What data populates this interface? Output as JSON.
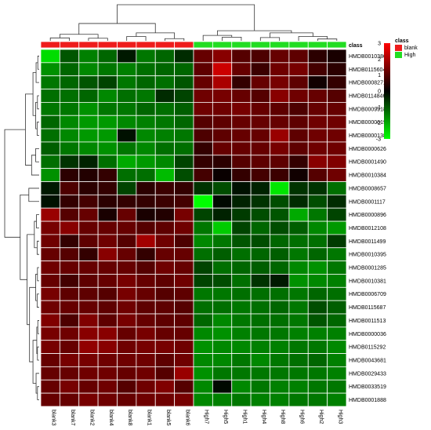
{
  "chart_data": {
    "type": "heatmap",
    "columns": [
      "blank3",
      "blank7",
      "blank2",
      "blank4",
      "blank8",
      "blank1",
      "blank5",
      "blank6",
      "High7",
      "High5",
      "High1",
      "High4",
      "High8",
      "High6",
      "High2",
      "High3"
    ],
    "rows": [
      "HMDB0010386",
      "HMDB0115604",
      "HMDB0008271",
      "HMDB0114846",
      "HMDB0009918",
      "HMDB0000619",
      "HMDB0000138",
      "HMDB0000626",
      "HMDB0001490",
      "HMDB0010384",
      "HMDB0008657",
      "HMDB0001117",
      "HMDB0000896",
      "HMDB0012108",
      "HMDB0011499",
      "HMDB0010395",
      "HMDB0001285",
      "HMDB0010381",
      "HMDB0006709",
      "HMDB0115687",
      "HMDB0011513",
      "HMDB0000036",
      "HMDB0115292",
      "HMDB0043681",
      "HMDB0029433",
      "HMDB0033519",
      "HMDB0001888"
    ],
    "column_class": [
      "blank",
      "blank",
      "blank",
      "blank",
      "blank",
      "blank",
      "blank",
      "blank",
      "High",
      "High",
      "High",
      "High",
      "High",
      "High",
      "High",
      "High"
    ],
    "values": [
      [
        -2.6,
        -1.0,
        -1.5,
        -1.2,
        -0.3,
        -1.4,
        -1.2,
        -0.5,
        1.2,
        1.6,
        1.0,
        0.9,
        1.2,
        1.1,
        0.5,
        0.3
      ],
      [
        -1.7,
        -1.2,
        -1.6,
        -1.4,
        -1.5,
        -1.3,
        -1.2,
        -1.2,
        1.1,
        2.4,
        1.2,
        0.7,
        1.3,
        1.4,
        0.8,
        0.5
      ],
      [
        -1.4,
        -1.2,
        -1.0,
        -0.8,
        -1.4,
        -1.2,
        -1.3,
        -1.0,
        1.2,
        2.0,
        0.6,
        1.2,
        1.4,
        1.1,
        0.2,
        0.6
      ],
      [
        -1.3,
        -1.3,
        -1.2,
        -1.6,
        -1.3,
        -1.4,
        -0.5,
        -0.8,
        1.3,
        1.4,
        1.2,
        1.0,
        1.6,
        1.3,
        1.2,
        1.0
      ],
      [
        -1.4,
        -1.4,
        -1.7,
        -1.4,
        -1.4,
        -1.2,
        -1.3,
        -1.1,
        1.3,
        1.3,
        1.4,
        1.2,
        1.1,
        0.9,
        1.2,
        1.2
      ],
      [
        -1.2,
        -1.6,
        -1.8,
        -1.8,
        -1.6,
        -1.5,
        -1.4,
        -1.2,
        1.0,
        1.1,
        1.2,
        1.2,
        1.2,
        1.1,
        1.3,
        1.3
      ],
      [
        -1.3,
        -1.6,
        -1.8,
        -1.8,
        -0.2,
        -1.6,
        -1.5,
        -1.4,
        0.9,
        1.1,
        1.2,
        1.2,
        1.8,
        1.1,
        1.3,
        1.3
      ],
      [
        -1.1,
        -1.4,
        -1.6,
        -1.7,
        -1.4,
        -1.6,
        -1.3,
        -1.3,
        0.6,
        1.2,
        1.2,
        1.2,
        1.4,
        1.1,
        1.3,
        1.3
      ],
      [
        -1.3,
        -0.6,
        -0.4,
        -1.3,
        -2.0,
        -1.8,
        -1.6,
        -0.8,
        0.6,
        0.5,
        1.0,
        1.1,
        1.1,
        0.6,
        1.6,
        1.5
      ],
      [
        -1.7,
        0.5,
        0.4,
        0.6,
        -1.3,
        -1.3,
        -2.2,
        -0.9,
        0.8,
        0.1,
        0.6,
        0.8,
        0.7,
        0.2,
        1.0,
        1.3
      ],
      [
        -0.3,
        0.9,
        0.5,
        0.6,
        -0.8,
        0.5,
        0.7,
        0.6,
        -0.6,
        -0.9,
        -0.2,
        -0.4,
        -2.7,
        -0.6,
        -0.6,
        -1.3
      ],
      [
        -0.2,
        0.6,
        0.8,
        0.5,
        0.6,
        0.6,
        0.7,
        0.8,
        -3.0,
        -0.1,
        -0.4,
        -0.6,
        -0.9,
        -0.5,
        -0.9,
        -0.5
      ],
      [
        1.8,
        1.0,
        1.2,
        0.3,
        1.2,
        0.3,
        0.4,
        1.4,
        -0.8,
        -0.4,
        -0.7,
        -0.9,
        -1.0,
        -2.0,
        -1.4,
        -0.8
      ],
      [
        1.4,
        1.6,
        1.2,
        1.2,
        1.2,
        1.0,
        1.1,
        1.3,
        -1.4,
        -2.4,
        -0.8,
        -1.2,
        -0.9,
        -1.1,
        -1.6,
        -1.8
      ],
      [
        1.3,
        0.6,
        1.1,
        1.3,
        1.0,
        1.9,
        1.3,
        0.9,
        -1.6,
        -1.4,
        -1.0,
        -0.9,
        -1.2,
        -1.3,
        -1.3,
        -0.7
      ],
      [
        1.2,
        1.0,
        0.6,
        1.6,
        1.2,
        0.6,
        1.2,
        1.2,
        -1.3,
        -1.1,
        -1.3,
        -1.2,
        -1.1,
        -1.4,
        -1.2,
        -1.4
      ],
      [
        1.3,
        1.2,
        1.2,
        1.2,
        1.2,
        1.0,
        1.3,
        1.2,
        -0.8,
        -1.3,
        -1.2,
        -1.1,
        -1.2,
        -1.6,
        -1.7,
        -1.4
      ],
      [
        1.2,
        0.8,
        1.1,
        1.2,
        1.4,
        1.2,
        1.1,
        1.3,
        -0.8,
        -0.9,
        -1.3,
        -0.6,
        -0.3,
        -1.7,
        -1.6,
        -1.5
      ],
      [
        1.4,
        1.1,
        1.1,
        1.0,
        1.4,
        1.2,
        1.0,
        1.1,
        -1.4,
        -1.4,
        -1.3,
        -1.3,
        -1.3,
        -1.4,
        -1.2,
        -1.3
      ],
      [
        1.3,
        1.2,
        1.2,
        1.1,
        1.3,
        1.1,
        1.1,
        1.0,
        -1.3,
        -1.3,
        -1.4,
        -1.3,
        -1.2,
        -1.4,
        -0.9,
        -1.1
      ],
      [
        1.5,
        0.9,
        1.5,
        1.1,
        1.4,
        1.2,
        1.1,
        1.1,
        -1.2,
        -1.6,
        -1.4,
        -1.3,
        -1.3,
        -1.4,
        -1.0,
        -1.2
      ],
      [
        1.4,
        1.3,
        1.6,
        1.6,
        1.2,
        1.4,
        1.2,
        1.2,
        -1.6,
        -1.7,
        -1.5,
        -1.4,
        -1.4,
        -1.5,
        -1.5,
        -1.5
      ],
      [
        1.4,
        1.2,
        1.7,
        1.6,
        1.3,
        1.4,
        1.4,
        1.3,
        -1.7,
        -1.6,
        -1.6,
        -1.5,
        -1.5,
        -1.4,
        -1.4,
        -1.6
      ],
      [
        1.2,
        1.4,
        1.4,
        1.3,
        1.3,
        1.3,
        1.1,
        1.3,
        -1.6,
        -1.6,
        -1.4,
        -1.6,
        -1.4,
        -1.3,
        -1.2,
        -1.5
      ],
      [
        1.2,
        1.2,
        1.3,
        1.3,
        1.2,
        1.3,
        1.0,
        1.8,
        -1.7,
        -1.4,
        -1.4,
        -1.4,
        -1.4,
        -1.4,
        -1.4,
        -1.5
      ],
      [
        1.2,
        1.4,
        1.2,
        1.3,
        1.0,
        1.3,
        1.5,
        1.0,
        -1.6,
        -0.1,
        -1.6,
        -1.4,
        -1.5,
        -1.5,
        -1.4,
        -1.4
      ],
      [
        1.2,
        1.2,
        1.4,
        1.3,
        1.2,
        1.3,
        1.3,
        1.4,
        -1.6,
        -1.5,
        -1.4,
        -1.5,
        -1.5,
        -1.4,
        -1.4,
        -1.5
      ]
    ],
    "class_label": "class",
    "legend": {
      "title": "class",
      "items": [
        {
          "label": "blank",
          "color": "#ee1c1c"
        },
        {
          "label": "High",
          "color": "#22dd22"
        }
      ]
    },
    "colorbar": {
      "min": -3,
      "max": 3,
      "ticks": [
        "3",
        "2",
        "1",
        "0",
        "-1",
        "-2",
        "-3"
      ]
    },
    "colors": {
      "high": "#ff0000",
      "mid": "#000000",
      "low": "#00ff00",
      "class_blank": "#ee1c1c",
      "class_high": "#22dd22"
    }
  }
}
